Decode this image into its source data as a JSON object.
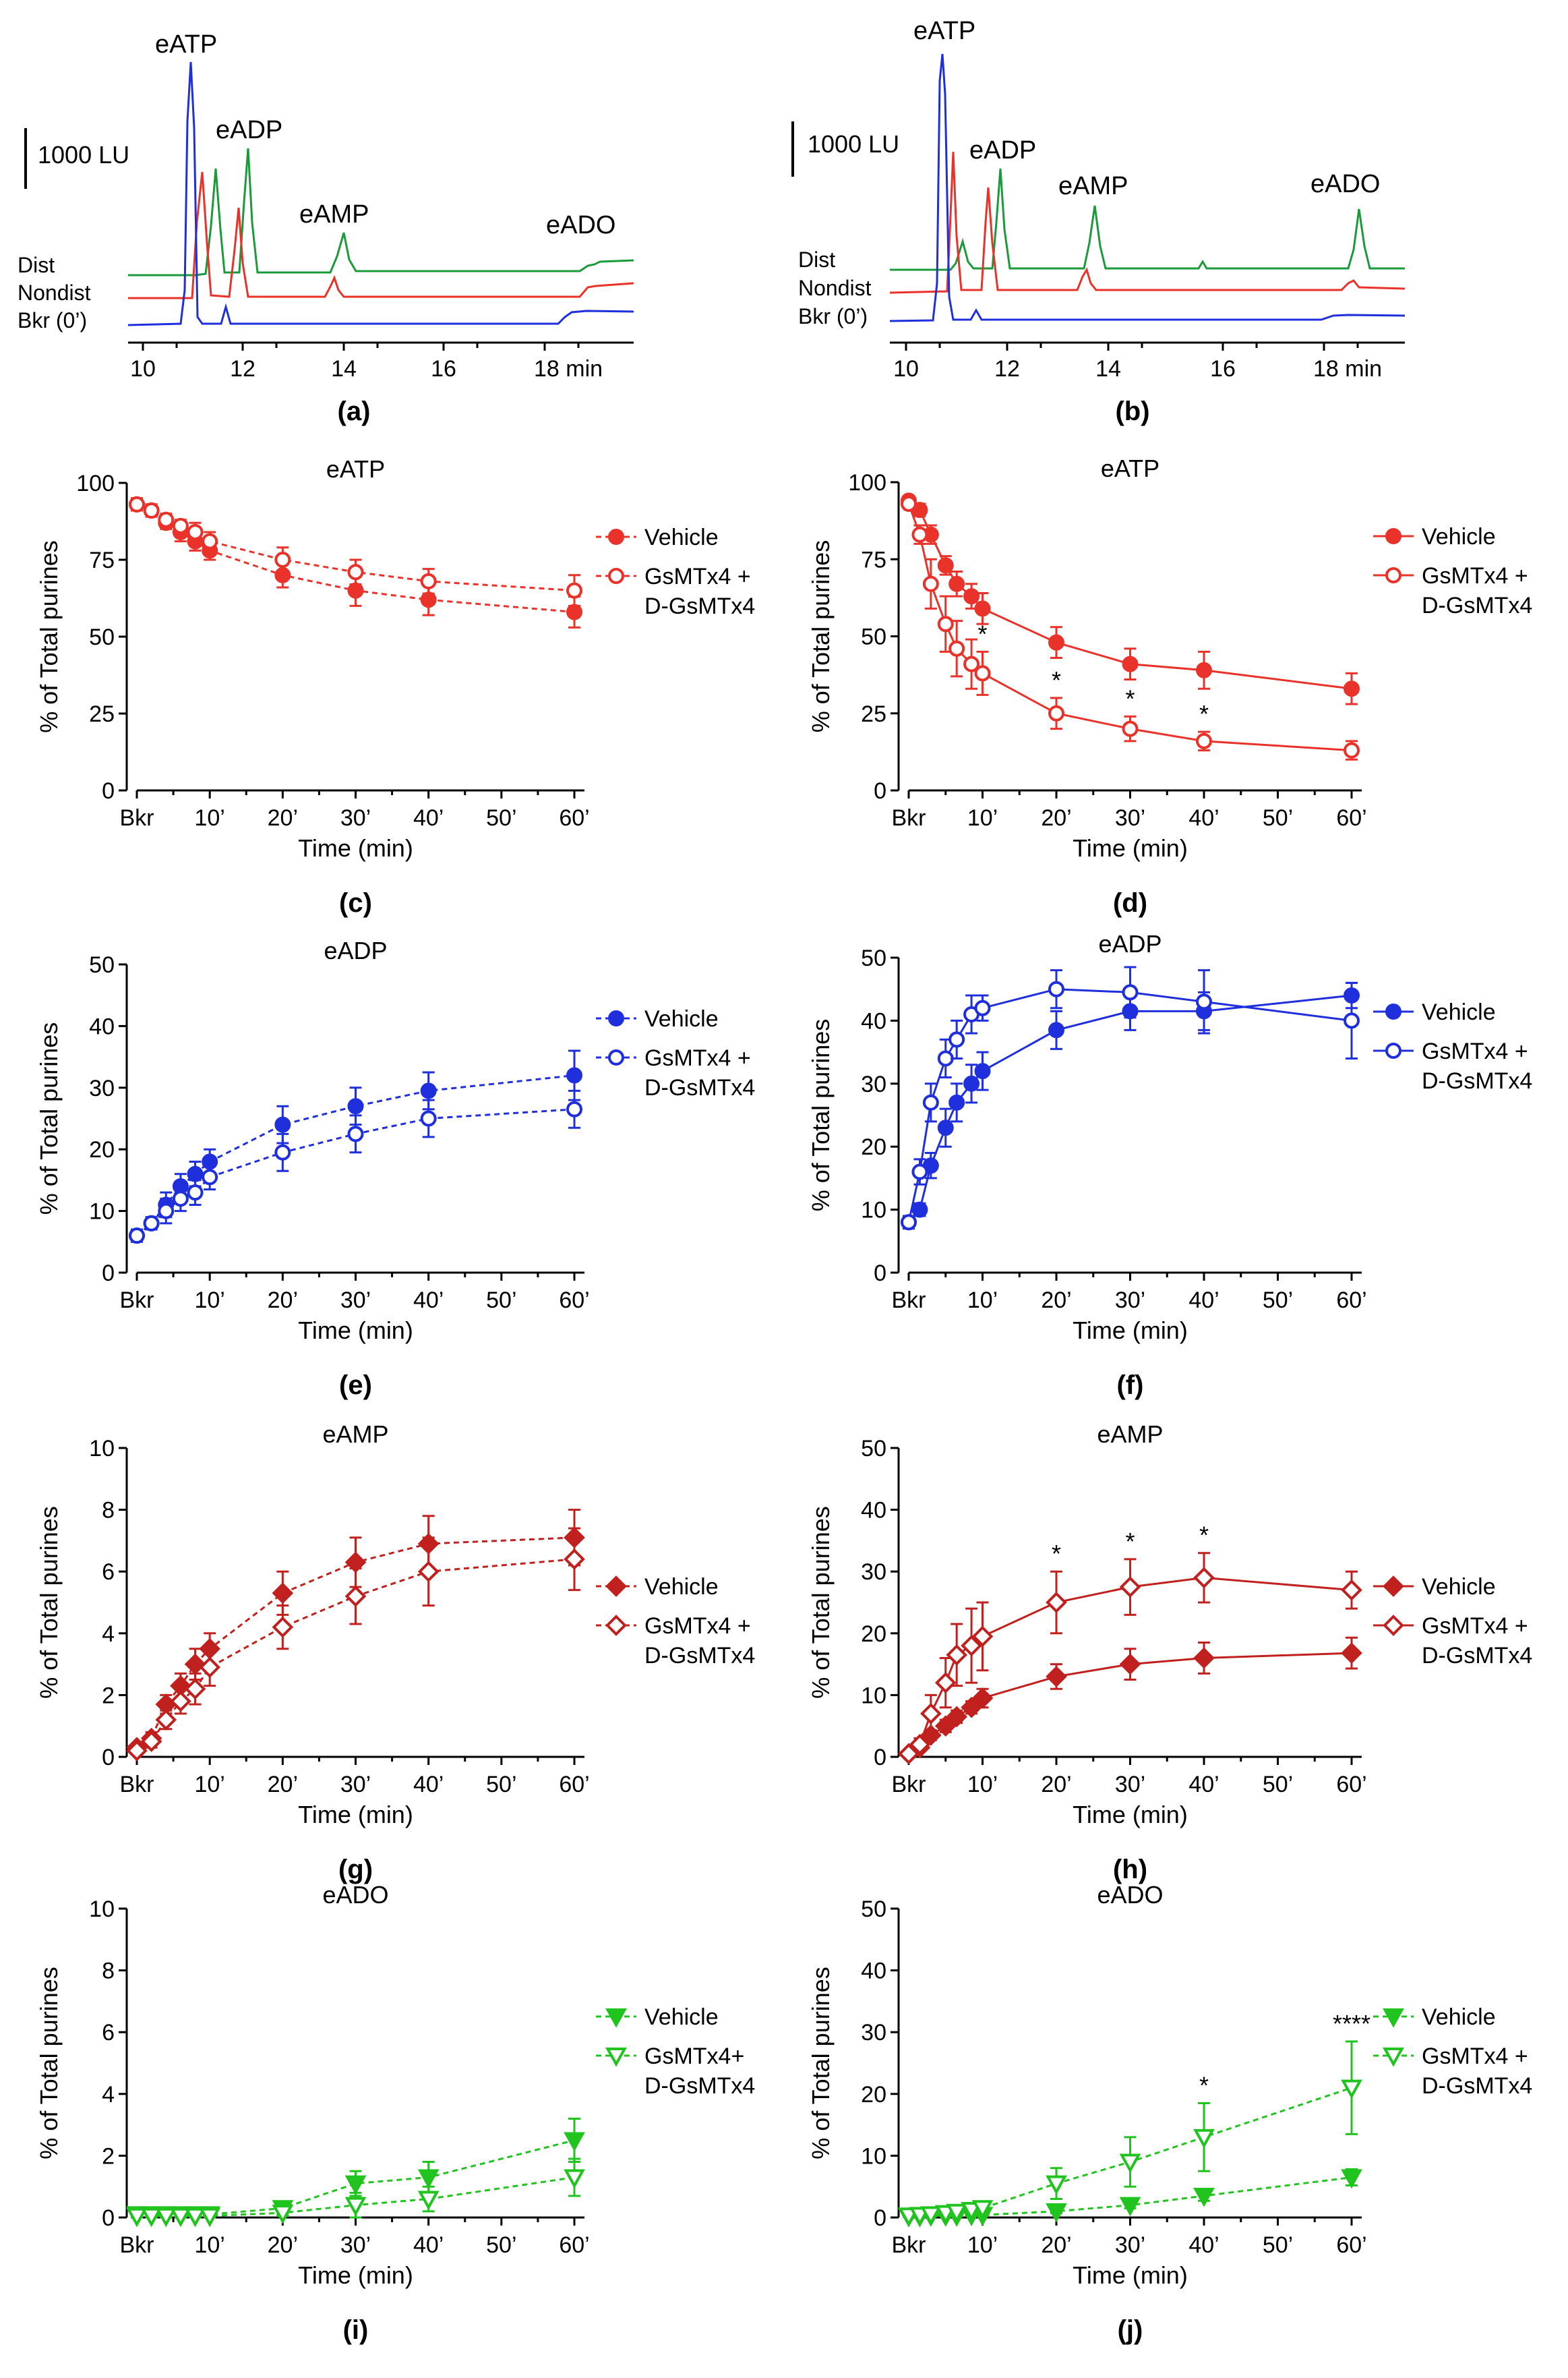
{
  "chromatograms": [
    {
      "panel_label": "(a)",
      "scale_label": "1000 LU",
      "trace_labels": [
        "Dist",
        "Nondist",
        "Bkr (0’)"
      ],
      "x_ticks": [
        "10",
        "12",
        "14",
        "16",
        "18 min"
      ],
      "peak_labels": [
        "eATP",
        "eADP",
        "eAMP",
        "eADO"
      ],
      "colors": {
        "Dist": "#1a9a3a",
        "Nondist": "#e8322a",
        "Bkr": "#1f2fdc"
      }
    },
    {
      "panel_label": "(b)",
      "scale_label": "1000 LU",
      "trace_labels": [
        "Dist",
        "Nondist",
        "Bkr (0’)"
      ],
      "x_ticks": [
        "10",
        "12",
        "14",
        "16",
        "18 min"
      ],
      "peak_labels": [
        "eATP",
        "eADP",
        "eAMP",
        "eADO"
      ],
      "colors": {
        "Dist": "#1a9a3a",
        "Nondist": "#e8322a",
        "Bkr": "#1f2fdc"
      }
    }
  ],
  "chart_data": [
    {
      "panel_label": "(c)",
      "type": "line",
      "title": "eATP",
      "xlabel": "Time  (min)",
      "ylabel": "% of Total  purines",
      "ylim": [
        0,
        100
      ],
      "yticks": [
        "0",
        "25",
        "50",
        "75",
        "100"
      ],
      "xtick_labels": [
        "Bkr",
        "10’",
        "20’",
        "30’",
        "40’",
        "50’",
        "60’"
      ],
      "color": "#e8322a",
      "marker": "circle",
      "dashed": true,
      "series": [
        {
          "name": "Vehicle",
          "filled": true,
          "x": [
            0,
            2,
            4,
            6,
            8,
            10,
            20,
            30,
            40,
            60
          ],
          "y": [
            93,
            91,
            87,
            84,
            81,
            78,
            70,
            65,
            62,
            58
          ],
          "err": [
            2,
            2,
            2,
            3,
            3,
            3,
            4,
            5,
            5,
            5
          ]
        },
        {
          "name": "GsMTx4 + D-GsMTx4",
          "filled": false,
          "x": [
            0,
            2,
            4,
            6,
            8,
            10,
            20,
            30,
            40,
            60
          ],
          "y": [
            93,
            91,
            88,
            86,
            84,
            81,
            75,
            71,
            68,
            65
          ],
          "err": [
            2,
            2,
            2,
            2,
            3,
            3,
            4,
            4,
            4,
            5
          ]
        }
      ],
      "stars": []
    },
    {
      "panel_label": "(d)",
      "type": "line",
      "title": "eATP",
      "xlabel": "Time  (min)",
      "ylabel": "% of Total  purines",
      "ylim": [
        0,
        100
      ],
      "yticks": [
        "0",
        "25",
        "50",
        "75",
        "100"
      ],
      "xtick_labels": [
        "Bkr",
        "10’",
        "20’",
        "30’",
        "40’",
        "50’",
        "60’"
      ],
      "color": "#e8322a",
      "marker": "circle",
      "dashed": false,
      "series": [
        {
          "name": "Vehicle",
          "filled": true,
          "x": [
            0,
            1.5,
            3,
            5,
            6.5,
            8.5,
            10,
            20,
            30,
            40,
            60
          ],
          "y": [
            94,
            91,
            83,
            73,
            67,
            63,
            59,
            48,
            41,
            39,
            33
          ],
          "err": [
            1,
            2,
            3,
            3,
            4,
            4,
            5,
            5,
            5,
            6,
            5
          ]
        },
        {
          "name": "GsMTx4 + D-GsMTx4",
          "filled": false,
          "x": [
            0,
            1.5,
            3,
            5,
            6.5,
            8.5,
            10,
            20,
            30,
            40,
            60
          ],
          "y": [
            93,
            83,
            67,
            54,
            46,
            41,
            38,
            25,
            20,
            16,
            13
          ],
          "err": [
            1,
            3,
            8,
            9,
            9,
            8,
            7,
            5,
            4,
            3,
            3
          ]
        }
      ],
      "stars": [
        {
          "x": 10,
          "y": 38,
          "label": "*"
        },
        {
          "x": 20,
          "y": 25,
          "label": "*"
        },
        {
          "x": 30,
          "y": 20,
          "label": "*"
        },
        {
          "x": 40,
          "y": 16,
          "label": "*"
        }
      ]
    },
    {
      "panel_label": "(e)",
      "type": "line",
      "title": "eADP",
      "xlabel": "Time  (min)",
      "ylabel": "% of Total  purines",
      "ylim": [
        0,
        50
      ],
      "yticks": [
        "0",
        "10",
        "20",
        "30",
        "40",
        "50"
      ],
      "xtick_labels": [
        "Bkr",
        "10’",
        "20’",
        "30’",
        "40’",
        "50’",
        "60’"
      ],
      "color": "#1f2fdc",
      "marker": "circle",
      "dashed": true,
      "series": [
        {
          "name": "Vehicle",
          "filled": true,
          "x": [
            0,
            2,
            4,
            6,
            8,
            10,
            20,
            30,
            40,
            60
          ],
          "y": [
            6,
            8,
            11,
            14,
            16,
            18,
            24,
            27,
            29.5,
            32
          ],
          "err": [
            1,
            1,
            2,
            2,
            2,
            2,
            3,
            3,
            3,
            4
          ]
        },
        {
          "name": "GsMTx4 + D-GsMTx4",
          "filled": false,
          "x": [
            0,
            2,
            4,
            6,
            8,
            10,
            20,
            30,
            40,
            60
          ],
          "y": [
            6,
            8,
            10,
            12,
            13,
            15.5,
            19.5,
            22.5,
            25,
            26.5
          ],
          "err": [
            1,
            1,
            2,
            2,
            2,
            2,
            3,
            3,
            3,
            3
          ]
        }
      ],
      "stars": []
    },
    {
      "panel_label": "(f)",
      "type": "line",
      "title": "eADP",
      "xlabel": "Time  (min)",
      "ylabel": "% of Total  purines",
      "ylim": [
        0,
        50
      ],
      "yticks": [
        "0",
        "10",
        "20",
        "30",
        "40",
        "50"
      ],
      "xtick_labels": [
        "Bkr",
        "10’",
        "20’",
        "30’",
        "40’",
        "50’",
        "60’"
      ],
      "color": "#1f2fdc",
      "marker": "circle",
      "dashed": false,
      "series": [
        {
          "name": "Vehicle",
          "filled": true,
          "x": [
            0,
            1.5,
            3,
            5,
            6.5,
            8.5,
            10,
            20,
            30,
            40,
            60
          ],
          "y": [
            8,
            10,
            17,
            23,
            27,
            30,
            32,
            38.5,
            41.5,
            41.5,
            44
          ],
          "err": [
            1,
            1,
            2,
            3,
            3,
            3,
            3,
            3,
            3,
            3,
            2
          ]
        },
        {
          "name": "GsMTx4 + D-GsMTx4",
          "filled": false,
          "x": [
            0,
            1.5,
            3,
            5,
            6.5,
            8.5,
            10,
            20,
            30,
            40,
            60
          ],
          "y": [
            8,
            16,
            27,
            34,
            37,
            41,
            42,
            45,
            44.5,
            43,
            40
          ],
          "err": [
            1,
            2,
            3,
            3,
            3,
            3,
            2,
            3,
            4,
            5,
            6
          ]
        }
      ],
      "stars": []
    },
    {
      "panel_label": "(g)",
      "type": "line",
      "title": "eAMP",
      "xlabel": "Time  (min)",
      "ylabel": "% of Total  purines",
      "ylim": [
        0,
        10
      ],
      "yticks": [
        "0",
        "2",
        "4",
        "6",
        "8",
        "10"
      ],
      "xtick_labels": [
        "Bkr",
        "10’",
        "20’",
        "30’",
        "40’",
        "50’",
        "60’"
      ],
      "color": "#c0201e",
      "marker": "diamond",
      "dashed": true,
      "series": [
        {
          "name": "Vehicle",
          "filled": true,
          "x": [
            0,
            2,
            4,
            6,
            8,
            10,
            20,
            30,
            40,
            60
          ],
          "y": [
            0.3,
            0.6,
            1.7,
            2.3,
            3.0,
            3.5,
            5.3,
            6.3,
            6.9,
            7.1
          ],
          "err": [
            0.1,
            0.2,
            0.3,
            0.4,
            0.5,
            0.5,
            0.7,
            0.8,
            0.9,
            0.9
          ]
        },
        {
          "name": "GsMTx4 + D-GsMTx4",
          "filled": false,
          "x": [
            0,
            2,
            4,
            6,
            8,
            10,
            20,
            30,
            40,
            60
          ],
          "y": [
            0.2,
            0.5,
            1.2,
            1.8,
            2.2,
            2.9,
            4.2,
            5.2,
            6.0,
            6.4
          ],
          "err": [
            0.1,
            0.2,
            0.3,
            0.4,
            0.5,
            0.6,
            0.7,
            0.9,
            1.1,
            1.0
          ]
        }
      ],
      "stars": []
    },
    {
      "panel_label": "(h)",
      "type": "line",
      "title": "eAMP",
      "xlabel": "Time  (min)",
      "ylabel": "% of Total  purines",
      "ylim": [
        0,
        50
      ],
      "yticks": [
        "0",
        "10",
        "20",
        "30",
        "40",
        "50"
      ],
      "xtick_labels": [
        "Bkr",
        "10’",
        "20’",
        "30’",
        "40’",
        "50’",
        "60’"
      ],
      "color": "#c0201e",
      "marker": "diamond",
      "dashed": false,
      "series": [
        {
          "name": "Vehicle",
          "filled": true,
          "x": [
            0,
            1.5,
            3,
            5,
            6.5,
            8.5,
            10,
            20,
            30,
            40,
            60
          ],
          "y": [
            0.5,
            1.5,
            3.5,
            5,
            6.5,
            8,
            9.5,
            13,
            15,
            16,
            16.8
          ],
          "err": [
            0.2,
            0.5,
            0.8,
            1,
            1,
            1,
            1.5,
            2,
            2.5,
            2.5,
            2.5
          ]
        },
        {
          "name": "GsMTx4 + D-GsMTx4",
          "filled": false,
          "x": [
            0,
            1.5,
            3,
            5,
            6.5,
            8.5,
            10,
            20,
            30,
            40,
            60
          ],
          "y": [
            0.5,
            2,
            7,
            12,
            16.5,
            18,
            19.5,
            25,
            27.5,
            29,
            27
          ],
          "err": [
            0.3,
            1,
            3,
            4,
            5,
            6,
            5.5,
            5,
            4.5,
            4,
            3
          ]
        }
      ],
      "stars": [
        {
          "x": 20,
          "y": 25,
          "label": "*"
        },
        {
          "x": 30,
          "y": 27.5,
          "label": "*"
        },
        {
          "x": 40,
          "y": 29,
          "label": "*"
        }
      ]
    },
    {
      "panel_label": "(i)",
      "type": "line",
      "title": "eADO",
      "xlabel": "Time  (min)",
      "ylabel": "% of Total  purines",
      "ylim": [
        0,
        10
      ],
      "yticks": [
        "0",
        "2",
        "4",
        "6",
        "8",
        "10"
      ],
      "xtick_labels": [
        "Bkr",
        "10’",
        "20’",
        "30’",
        "40’",
        "50’",
        "60’"
      ],
      "color": "#21c41e",
      "marker": "triangle",
      "dashed": true,
      "series": [
        {
          "name": "Vehicle",
          "filled": true,
          "x": [
            0,
            2,
            4,
            6,
            8,
            10,
            20,
            30,
            40,
            60
          ],
          "y": [
            0.1,
            0.1,
            0.1,
            0.1,
            0.1,
            0.1,
            0.3,
            1.1,
            1.3,
            2.5
          ],
          "err": [
            0.05,
            0.05,
            0.05,
            0.05,
            0.05,
            0.05,
            0.2,
            0.4,
            0.5,
            0.7
          ]
        },
        {
          "name": "GsMTx4+ D-GsMTx4",
          "filled": false,
          "x": [
            0,
            2,
            4,
            6,
            8,
            10,
            20,
            30,
            40,
            60
          ],
          "y": [
            0.05,
            0.05,
            0.05,
            0.05,
            0.05,
            0.05,
            0.15,
            0.4,
            0.6,
            1.3
          ],
          "err": [
            0.05,
            0.05,
            0.05,
            0.05,
            0.05,
            0.05,
            0.1,
            0.4,
            0.4,
            0.6
          ]
        }
      ],
      "stars": []
    },
    {
      "panel_label": "(j)",
      "type": "line",
      "title": "eADO",
      "xlabel": "Time  (min)",
      "ylabel": "% of Total  purines",
      "ylim": [
        0,
        50
      ],
      "yticks": [
        "0",
        "10",
        "20",
        "30",
        "40",
        "50"
      ],
      "xtick_labels": [
        "Bkr",
        "10’",
        "20’",
        "30’",
        "40’",
        "50’",
        "60’"
      ],
      "color": "#21c41e",
      "marker": "triangle",
      "dashed": true,
      "series": [
        {
          "name": "Vehicle",
          "filled": true,
          "x": [
            0,
            1.5,
            3,
            5,
            6.5,
            8.5,
            10,
            20,
            30,
            40,
            60
          ],
          "y": [
            0.2,
            0.2,
            0.3,
            0.3,
            0.3,
            0.4,
            0.4,
            1,
            2,
            3.5,
            6.5
          ],
          "err": [
            0.1,
            0.1,
            0.1,
            0.1,
            0.1,
            0.1,
            0.1,
            0.3,
            0.5,
            0.8,
            1.3
          ]
        },
        {
          "name": "GsMTx4 + D-GsMTx4",
          "filled": false,
          "x": [
            0,
            1.5,
            3,
            5,
            6.5,
            8.5,
            10,
            20,
            30,
            40,
            60
          ],
          "y": [
            0.3,
            0.4,
            0.5,
            0.7,
            0.9,
            1.2,
            1.5,
            5.5,
            9,
            13,
            21
          ],
          "err": [
            0.2,
            0.2,
            0.3,
            0.4,
            0.5,
            0.7,
            1,
            2.5,
            4,
            5.5,
            7.5
          ]
        }
      ],
      "stars": [
        {
          "x": 40,
          "y": 13,
          "label": "*"
        },
        {
          "x": 60,
          "y": 21,
          "label": "****"
        }
      ]
    }
  ]
}
